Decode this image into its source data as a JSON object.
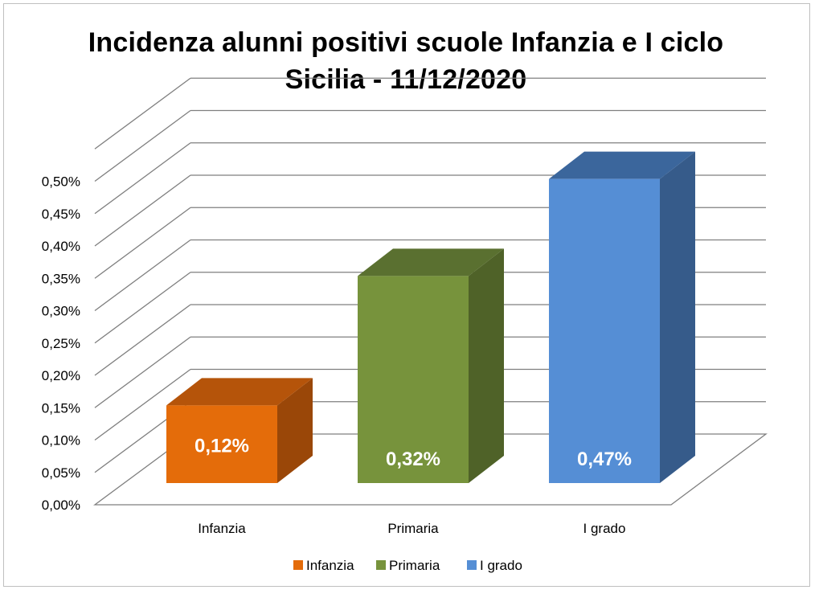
{
  "chart_data": {
    "type": "bar",
    "title_lines": [
      "Incidenza alunni positivi scuole Infanzia e I ciclo",
      "Sicilia - 11/12/2020"
    ],
    "categories": [
      "Infanzia",
      "Primaria",
      "I grado"
    ],
    "series": [
      {
        "name": "Infanzia",
        "category": "Infanzia",
        "value": 0.12,
        "label": "0,12%",
        "color": "#e46c0a",
        "top_color": "#b5540a",
        "side_color": "#9a4708"
      },
      {
        "name": "Primaria",
        "category": "Primaria",
        "value": 0.32,
        "label": "0,32%",
        "color": "#77933c",
        "top_color": "#5a7030",
        "side_color": "#4f6228"
      },
      {
        "name": "I grado",
        "category": "I grado",
        "value": 0.47,
        "label": "0,47%",
        "color": "#558ed5",
        "top_color": "#3b669c",
        "side_color": "#365b8a"
      }
    ],
    "y_ticks": [
      "0,00%",
      "0,05%",
      "0,10%",
      "0,15%",
      "0,20%",
      "0,25%",
      "0,30%",
      "0,35%",
      "0,40%",
      "0,45%",
      "0,50%"
    ],
    "ylim": [
      0,
      0.5
    ],
    "tick_step": 0.05,
    "gridlines": true,
    "legend_position": "bottom",
    "style": "3d-column"
  }
}
